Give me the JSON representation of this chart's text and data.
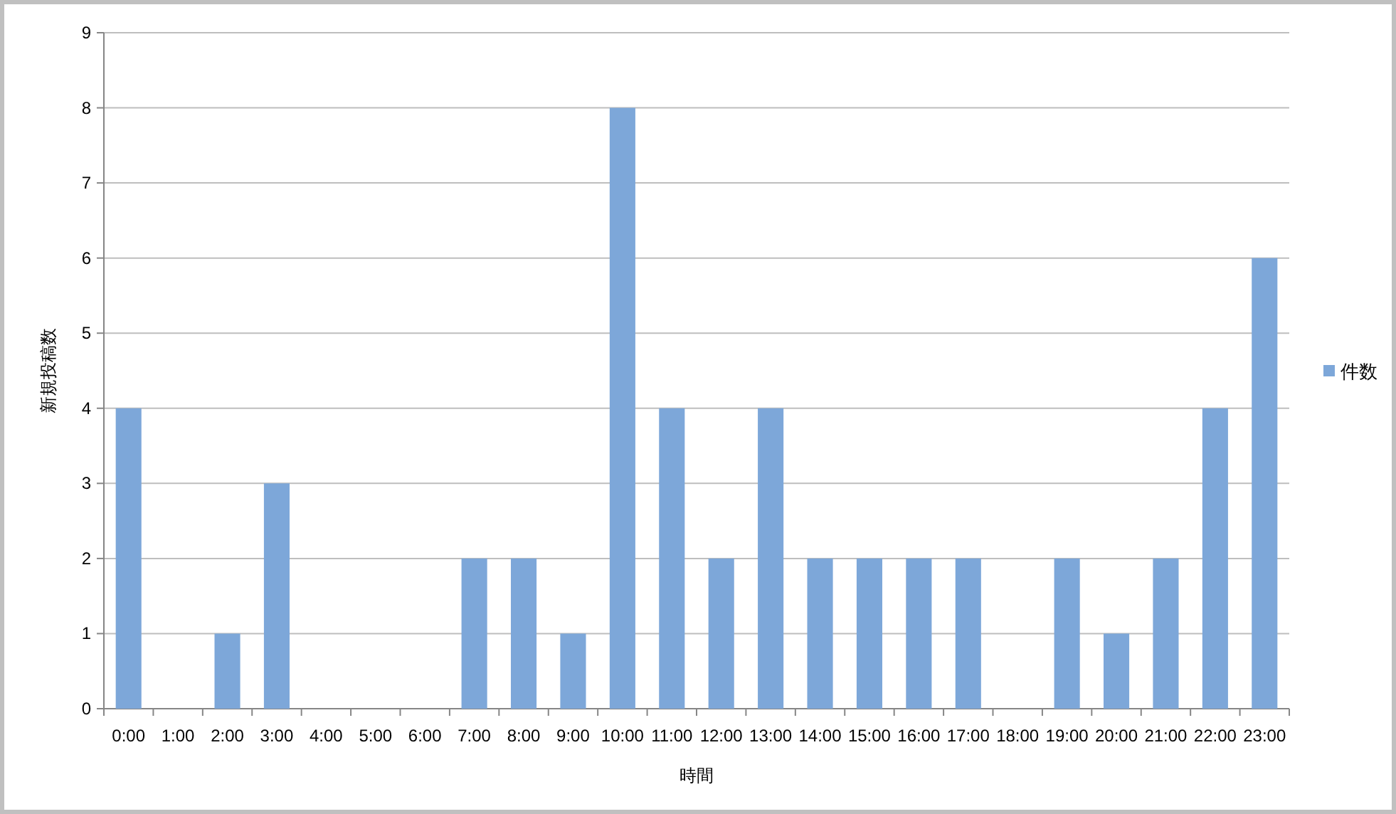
{
  "chart_data": {
    "type": "bar",
    "xlabel": "時間",
    "ylabel": "新規投稿数",
    "categories": [
      "0:00",
      "1:00",
      "2:00",
      "3:00",
      "4:00",
      "5:00",
      "6:00",
      "7:00",
      "8:00",
      "9:00",
      "10:00",
      "11:00",
      "12:00",
      "13:00",
      "14:00",
      "15:00",
      "16:00",
      "17:00",
      "18:00",
      "19:00",
      "20:00",
      "21:00",
      "22:00",
      "23:00"
    ],
    "series": [
      {
        "name": "件数",
        "color": "#7da7d9",
        "values": [
          4,
          0,
          1,
          3,
          0,
          0,
          0,
          2,
          2,
          1,
          8,
          4,
          2,
          4,
          2,
          2,
          2,
          2,
          0,
          2,
          1,
          2,
          4,
          6
        ]
      }
    ],
    "ylim": [
      0,
      9
    ],
    "yticks": [
      0,
      1,
      2,
      3,
      4,
      5,
      6,
      7,
      8,
      9
    ],
    "grid": "y",
    "legend": "right"
  }
}
